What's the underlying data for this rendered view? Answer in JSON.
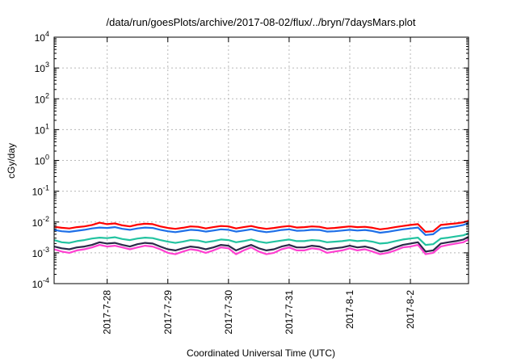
{
  "chart_data": {
    "type": "line",
    "title": "/data/run/goesPlots/archive/2017-08-02/flux/../bryn/7daysMars.plot",
    "xlabel": "Coordinated Universal Time (UTC)",
    "ylabel": "cGy/day",
    "yscale": "log",
    "ylim": [
      0.0001,
      10000
    ],
    "y_ticks": [
      {
        "value": 0.0001,
        "base": "10",
        "exp": "-4"
      },
      {
        "value": 0.001,
        "base": "10",
        "exp": "-3"
      },
      {
        "value": 0.01,
        "base": "10",
        "exp": "-2"
      },
      {
        "value": 0.1,
        "base": "10",
        "exp": "-1"
      },
      {
        "value": 1,
        "base": "10",
        "exp": "0"
      },
      {
        "value": 10,
        "base": "10",
        "exp": "1"
      },
      {
        "value": 100,
        "base": "10",
        "exp": "2"
      },
      {
        "value": 1000,
        "base": "10",
        "exp": "3"
      },
      {
        "value": 10000,
        "base": "10",
        "exp": "4"
      }
    ],
    "xlim": [
      "2017-07-27 03:00",
      "2017-08-02 23:00"
    ],
    "x_ticks": [
      {
        "value": "2017-07-28 00:00",
        "label": "2017-7-28"
      },
      {
        "value": "2017-07-29 00:00",
        "label": "2017-7-29"
      },
      {
        "value": "2017-07-30 00:00",
        "label": "2017-7-30"
      },
      {
        "value": "2017-07-31 00:00",
        "label": "2017-7-31"
      },
      {
        "value": "2017-08-01 00:00",
        "label": "2017-8-1"
      },
      {
        "value": "2017-08-02 00:00",
        "label": "2017-8-2"
      }
    ],
    "grid": true,
    "x": [
      "2017-07-27 03:00",
      "2017-07-27 06:00",
      "2017-07-27 09:00",
      "2017-07-27 12:00",
      "2017-07-27 15:00",
      "2017-07-27 18:00",
      "2017-07-27 21:00",
      "2017-07-28 00:00",
      "2017-07-28 03:00",
      "2017-07-28 06:00",
      "2017-07-28 09:00",
      "2017-07-28 12:00",
      "2017-07-28 15:00",
      "2017-07-28 18:00",
      "2017-07-28 21:00",
      "2017-07-29 00:00",
      "2017-07-29 03:00",
      "2017-07-29 06:00",
      "2017-07-29 09:00",
      "2017-07-29 12:00",
      "2017-07-29 15:00",
      "2017-07-29 18:00",
      "2017-07-29 21:00",
      "2017-07-30 00:00",
      "2017-07-30 03:00",
      "2017-07-30 06:00",
      "2017-07-30 09:00",
      "2017-07-30 12:00",
      "2017-07-30 15:00",
      "2017-07-30 18:00",
      "2017-07-30 21:00",
      "2017-07-31 00:00",
      "2017-07-31 03:00",
      "2017-07-31 06:00",
      "2017-07-31 09:00",
      "2017-07-31 12:00",
      "2017-07-31 15:00",
      "2017-07-31 18:00",
      "2017-07-31 21:00",
      "2017-08-01 00:00",
      "2017-08-01 03:00",
      "2017-08-01 06:00",
      "2017-08-01 09:00",
      "2017-08-01 12:00",
      "2017-08-01 15:00",
      "2017-08-01 18:00",
      "2017-08-01 21:00",
      "2017-08-02 00:00",
      "2017-08-02 03:00",
      "2017-08-02 06:00",
      "2017-08-02 09:00",
      "2017-08-02 12:00",
      "2017-08-02 15:00",
      "2017-08-02 18:00",
      "2017-08-02 21:00",
      "2017-08-02 23:00"
    ],
    "series": [
      {
        "color": "#ff0000",
        "values": [
          0.007,
          0.0065,
          0.0062,
          0.0068,
          0.0072,
          0.008,
          0.0095,
          0.0085,
          0.009,
          0.0078,
          0.0072,
          0.0082,
          0.0088,
          0.0085,
          0.0072,
          0.0064,
          0.006,
          0.0065,
          0.0072,
          0.007,
          0.0062,
          0.0068,
          0.0074,
          0.0072,
          0.0062,
          0.0068,
          0.0074,
          0.0065,
          0.006,
          0.0064,
          0.007,
          0.0074,
          0.0066,
          0.0068,
          0.0072,
          0.007,
          0.0062,
          0.0064,
          0.0068,
          0.0072,
          0.0068,
          0.007,
          0.0065,
          0.0058,
          0.0062,
          0.0068,
          0.0074,
          0.008,
          0.0085,
          0.0048,
          0.005,
          0.008,
          0.0085,
          0.009,
          0.0098,
          0.011
        ]
      },
      {
        "color": "#1e6fe8",
        "values": [
          0.0055,
          0.005,
          0.0048,
          0.0052,
          0.0056,
          0.0062,
          0.0066,
          0.0064,
          0.0068,
          0.006,
          0.0056,
          0.0062,
          0.0066,
          0.0064,
          0.0056,
          0.005,
          0.0047,
          0.0051,
          0.0056,
          0.0054,
          0.0049,
          0.0053,
          0.0058,
          0.0056,
          0.0049,
          0.0053,
          0.0058,
          0.0051,
          0.0047,
          0.005,
          0.0055,
          0.0058,
          0.0052,
          0.0053,
          0.0056,
          0.0055,
          0.0049,
          0.005,
          0.0053,
          0.0056,
          0.0053,
          0.0055,
          0.0051,
          0.0045,
          0.0048,
          0.0053,
          0.0058,
          0.0062,
          0.0066,
          0.0038,
          0.004,
          0.0062,
          0.0066,
          0.0072,
          0.008,
          0.0092
        ]
      },
      {
        "color": "#22c3a0",
        "values": [
          0.0026,
          0.0022,
          0.0021,
          0.0024,
          0.0026,
          0.0029,
          0.0031,
          0.003,
          0.0032,
          0.0028,
          0.0026,
          0.0029,
          0.0031,
          0.003,
          0.0026,
          0.0023,
          0.0021,
          0.0023,
          0.0026,
          0.0025,
          0.0022,
          0.0024,
          0.0027,
          0.0026,
          0.0022,
          0.0024,
          0.0027,
          0.0023,
          0.0021,
          0.0023,
          0.0025,
          0.0027,
          0.0024,
          0.0024,
          0.0026,
          0.0025,
          0.0022,
          0.0023,
          0.0024,
          0.0026,
          0.0024,
          0.0025,
          0.0023,
          0.002,
          0.0021,
          0.0024,
          0.0027,
          0.0029,
          0.0031,
          0.0018,
          0.0019,
          0.0029,
          0.0031,
          0.0034,
          0.0037,
          0.0043
        ]
      },
      {
        "color": "#2b2a4a",
        "values": [
          0.0016,
          0.0014,
          0.0013,
          0.0015,
          0.0016,
          0.0018,
          0.0022,
          0.002,
          0.0021,
          0.0018,
          0.0016,
          0.0019,
          0.0021,
          0.002,
          0.0016,
          0.0013,
          0.0012,
          0.0014,
          0.0016,
          0.0015,
          0.0013,
          0.0015,
          0.0018,
          0.0017,
          0.0012,
          0.0015,
          0.0018,
          0.0014,
          0.0012,
          0.0013,
          0.0016,
          0.0018,
          0.0015,
          0.0015,
          0.0017,
          0.0016,
          0.0013,
          0.0014,
          0.0015,
          0.0017,
          0.0015,
          0.0016,
          0.0014,
          0.0011,
          0.0012,
          0.0015,
          0.0018,
          0.002,
          0.0022,
          0.0011,
          0.0012,
          0.002,
          0.0022,
          0.0024,
          0.0027,
          0.0033
        ]
      },
      {
        "color": "#ff3fd0",
        "values": [
          0.0013,
          0.0011,
          0.001,
          0.0012,
          0.0013,
          0.0015,
          0.0018,
          0.0016,
          0.0017,
          0.0015,
          0.0013,
          0.0015,
          0.0017,
          0.0016,
          0.0013,
          0.001,
          0.0009,
          0.0011,
          0.0013,
          0.0012,
          0.001,
          0.0012,
          0.0015,
          0.0014,
          0.0009,
          0.0012,
          0.0015,
          0.0011,
          0.0009,
          0.001,
          0.0013,
          0.0015,
          0.0012,
          0.0012,
          0.0014,
          0.0013,
          0.001,
          0.0011,
          0.0012,
          0.0014,
          0.0012,
          0.0013,
          0.0011,
          0.0009,
          0.001,
          0.0012,
          0.0015,
          0.0016,
          0.0018,
          0.0009,
          0.001,
          0.0016,
          0.0018,
          0.002,
          0.0022,
          0.0027
        ]
      }
    ]
  }
}
